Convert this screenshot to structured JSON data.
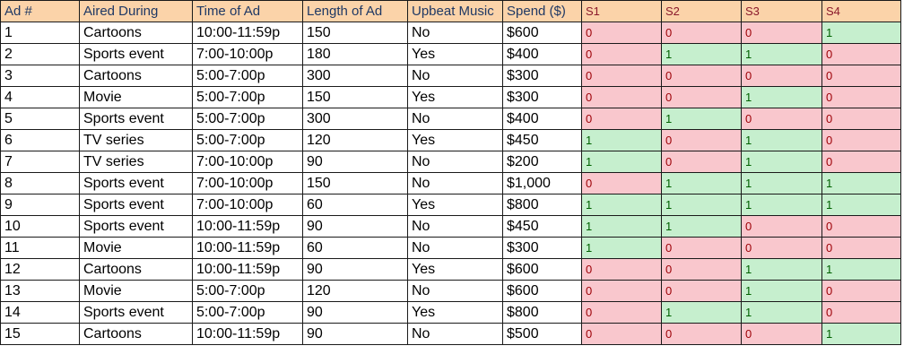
{
  "table": {
    "headers": [
      "Ad #",
      "Aired During",
      "Time of Ad",
      "Length of Ad",
      "Upbeat Music",
      "Spend ($)",
      "S1",
      "S2",
      "S3",
      "S4"
    ],
    "rows": [
      [
        "1",
        "Cartoons",
        "10:00-11:59p",
        "150",
        "No",
        "$600",
        "0",
        "0",
        "0",
        "1"
      ],
      [
        "2",
        "Sports event",
        "7:00-10:00p",
        "180",
        "Yes",
        "$400",
        "0",
        "1",
        "1",
        "0"
      ],
      [
        "3",
        "Cartoons",
        "5:00-7:00p",
        "300",
        "No",
        "$300",
        "0",
        "0",
        "0",
        "0"
      ],
      [
        "4",
        "Movie",
        "5:00-7:00p",
        "150",
        "Yes",
        "$300",
        "0",
        "0",
        "1",
        "0"
      ],
      [
        "5",
        "Sports event",
        "5:00-7:00p",
        "300",
        "No",
        "$400",
        "0",
        "1",
        "0",
        "0"
      ],
      [
        "6",
        "TV series",
        "5:00-7:00p",
        "120",
        "Yes",
        "$450",
        "1",
        "0",
        "1",
        "0"
      ],
      [
        "7",
        "TV series",
        "7:00-10:00p",
        "90",
        "No",
        "$200",
        "1",
        "0",
        "1",
        "0"
      ],
      [
        "8",
        "Sports event",
        "7:00-10:00p",
        "150",
        "No",
        "$1,000",
        "0",
        "1",
        "1",
        "1"
      ],
      [
        "9",
        "Sports event",
        "7:00-10:00p",
        "60",
        "Yes",
        "$800",
        "1",
        "1",
        "1",
        "1"
      ],
      [
        "10",
        "Sports event",
        "10:00-11:59p",
        "90",
        "No",
        "$450",
        "1",
        "1",
        "0",
        "0"
      ],
      [
        "11",
        "Movie",
        "10:00-11:59p",
        "60",
        "No",
        "$300",
        "1",
        "0",
        "0",
        "0"
      ],
      [
        "12",
        "Cartoons",
        "10:00-11:59p",
        "90",
        "Yes",
        "$600",
        "0",
        "0",
        "1",
        "1"
      ],
      [
        "13",
        "Movie",
        "5:00-7:00p",
        "120",
        "No",
        "$600",
        "0",
        "0",
        "1",
        "0"
      ],
      [
        "14",
        "Sports event",
        "5:00-7:00p",
        "90",
        "Yes",
        "$800",
        "0",
        "1",
        "1",
        "0"
      ],
      [
        "15",
        "Cartoons",
        "10:00-11:59p",
        "90",
        "No",
        "$500",
        "0",
        "0",
        "0",
        "1"
      ]
    ]
  },
  "colors": {
    "header_bg": "#fbd3a9",
    "zero_bg": "#f9c7cd",
    "zero_text": "#9c0006",
    "one_bg": "#c6efce",
    "one_text": "#006100"
  }
}
